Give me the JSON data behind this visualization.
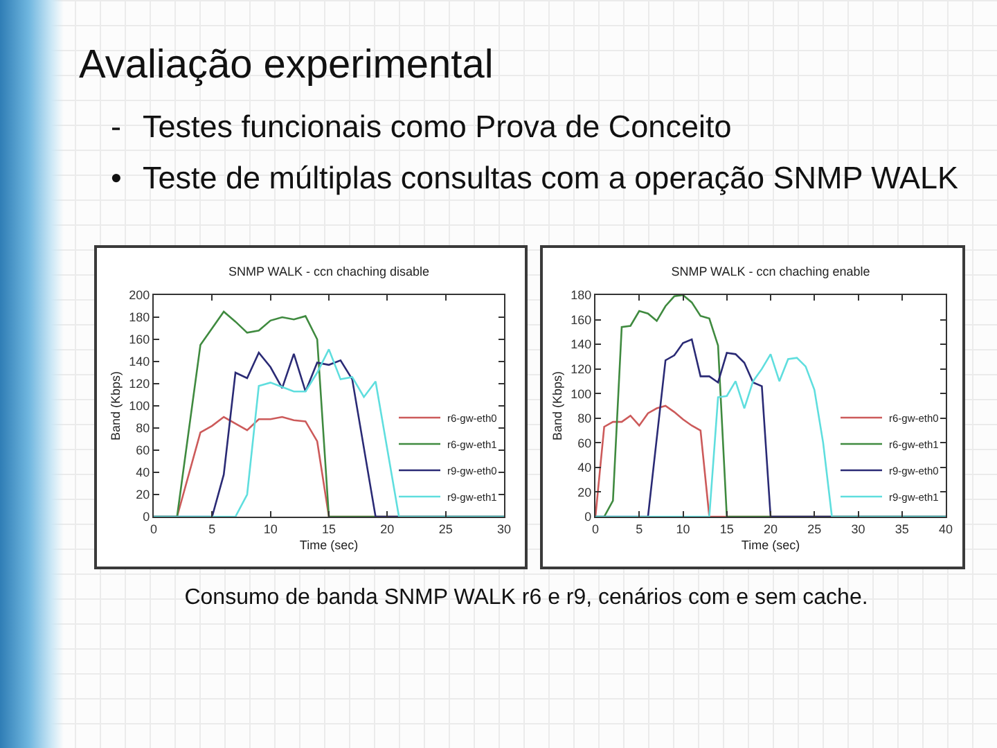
{
  "chart_data": [
    {
      "type": "other",
      "title": "Avaliação experimental",
      "annotations": [
        "- Testes funcionais como Prova de Conceito",
        "• Teste de múltiplas consultas com a operação SNMP WALK"
      ]
    },
    {
      "type": "line",
      "title": "SNMP WALK - ccn chaching disable",
      "xlabel": "Time (sec)",
      "ylabel": "Band (Kbps)",
      "xlim": [
        0,
        30
      ],
      "xticks": [
        0,
        5,
        10,
        15,
        20,
        25,
        30
      ],
      "ylim": [
        0,
        200
      ],
      "yticks": [
        0,
        20,
        40,
        60,
        80,
        100,
        120,
        140,
        160,
        180,
        200
      ],
      "legend": "bottom right",
      "series": [
        {
          "name": "r6-gw-eth0",
          "color": "#cc5a5a",
          "x": [
            0,
            2,
            4,
            5,
            6,
            8,
            9,
            10,
            11,
            12,
            13,
            14,
            15,
            30
          ],
          "values": [
            0,
            0,
            76,
            82,
            90,
            78,
            88,
            88,
            90,
            87,
            86,
            68,
            0,
            0
          ]
        },
        {
          "name": "r6-gw-eth1",
          "color": "#3f8a3f",
          "x": [
            0,
            2,
            4,
            5,
            6,
            7,
            8,
            9,
            10,
            11,
            12,
            13,
            14,
            15,
            30
          ],
          "values": [
            0,
            0,
            155,
            170,
            185,
            176,
            166,
            168,
            177,
            180,
            178,
            181,
            160,
            0,
            0
          ]
        },
        {
          "name": "r9-gw-eth0",
          "color": "#2a2a75",
          "x": [
            0,
            5,
            6,
            7,
            8,
            9,
            10,
            11,
            12,
            13,
            14,
            15,
            16,
            17,
            19,
            30
          ],
          "values": [
            0,
            0,
            38,
            130,
            125,
            148,
            135,
            116,
            147,
            113,
            139,
            137,
            141,
            124,
            0,
            0
          ]
        },
        {
          "name": "r9-gw-eth1",
          "color": "#5fdede",
          "x": [
            0,
            7,
            8,
            9,
            10,
            11,
            12,
            13,
            14,
            15,
            16,
            17,
            18,
            19,
            21,
            30
          ],
          "values": [
            0,
            0,
            20,
            118,
            121,
            117,
            113,
            113,
            130,
            151,
            124,
            126,
            108,
            122,
            0,
            0
          ]
        }
      ]
    },
    {
      "type": "line",
      "title": "SNMP WALK - ccn chaching enable",
      "xlabel": "Time (sec)",
      "ylabel": "Band (Kbps)",
      "xlim": [
        0,
        40
      ],
      "xticks": [
        0,
        5,
        10,
        15,
        20,
        25,
        30,
        35,
        40
      ],
      "ylim": [
        0,
        180
      ],
      "yticks": [
        0,
        20,
        40,
        60,
        80,
        100,
        120,
        140,
        160,
        180
      ],
      "legend": "bottom right",
      "series": [
        {
          "name": "r6-gw-eth0",
          "color": "#cc5a5a",
          "x": [
            0,
            1,
            2,
            3,
            4,
            5,
            6,
            7,
            8,
            9,
            10,
            11,
            12,
            13,
            40
          ],
          "values": [
            0,
            73,
            77,
            77,
            82,
            74,
            84,
            88,
            90,
            85,
            79,
            74,
            70,
            0,
            0
          ]
        },
        {
          "name": "r6-gw-eth1",
          "color": "#3f8a3f",
          "x": [
            0,
            1,
            2,
            3,
            4,
            5,
            6,
            7,
            8,
            9,
            10,
            11,
            12,
            13,
            14,
            15,
            40
          ],
          "values": [
            0,
            0,
            13,
            154,
            155,
            167,
            165,
            159,
            171,
            179,
            180,
            174,
            163,
            161,
            139,
            0,
            0
          ]
        },
        {
          "name": "r9-gw-eth0",
          "color": "#2a2a75",
          "x": [
            0,
            6,
            8,
            9,
            10,
            11,
            12,
            13,
            14,
            15,
            16,
            17,
            18,
            19,
            20,
            40
          ],
          "values": [
            0,
            0,
            127,
            131,
            141,
            144,
            114,
            114,
            109,
            133,
            132,
            125,
            109,
            106,
            0,
            0
          ]
        },
        {
          "name": "r9-gw-eth1",
          "color": "#5fdede",
          "x": [
            0,
            13,
            14,
            15,
            16,
            17,
            18,
            19,
            20,
            21,
            22,
            23,
            24,
            25,
            26,
            27,
            40
          ],
          "values": [
            0,
            0,
            97,
            98,
            110,
            88,
            110,
            120,
            132,
            110,
            128,
            129,
            122,
            103,
            60,
            0,
            0
          ]
        }
      ]
    },
    {
      "type": "other",
      "annotations": [
        "Consumo de banda SNMP WALK r6 e r9, cenários com e sem cache."
      ]
    }
  ]
}
